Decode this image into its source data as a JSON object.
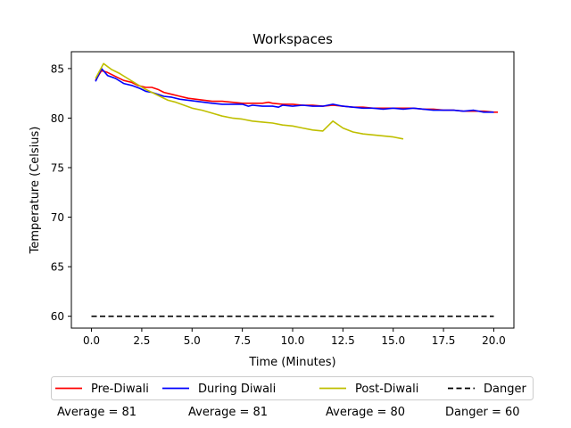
{
  "chart_data": {
    "type": "line",
    "title": "Workspaces",
    "xlabel": "Time (Minutes)",
    "ylabel": "Temperature (Celsius)",
    "xlim": [
      -1,
      21
    ],
    "ylim": [
      58.8,
      86.7
    ],
    "xticks": [
      0.0,
      2.5,
      5.0,
      7.5,
      10.0,
      12.5,
      15.0,
      17.5,
      20.0
    ],
    "xtick_labels": [
      "0.0",
      "2.5",
      "5.0",
      "7.5",
      "10.0",
      "12.5",
      "15.0",
      "17.5",
      "20.0"
    ],
    "yticks": [
      60,
      65,
      70,
      75,
      80,
      85
    ],
    "ytick_labels": [
      "60",
      "65",
      "70",
      "75",
      "80",
      "85"
    ],
    "grid": false,
    "legend_position": "bottom",
    "series": [
      {
        "name": "Pre-Diwali",
        "color": "#ff0000",
        "style": "solid",
        "x": [
          0.2,
          0.5,
          0.8,
          1.2,
          1.6,
          2.0,
          2.3,
          2.7,
          3.0,
          3.3,
          3.6,
          4.0,
          4.4,
          4.8,
          5.2,
          5.6,
          6.0,
          6.5,
          7.0,
          7.5,
          8.0,
          8.5,
          8.8,
          9.0,
          9.5,
          10.0,
          10.5,
          11.0,
          11.5,
          12.0,
          12.5,
          13.0,
          13.5,
          14.0,
          14.5,
          15.0,
          15.5,
          16.0,
          16.5,
          17.0,
          17.5,
          18.0,
          18.5,
          19.0,
          19.5,
          20.0,
          20.2
        ],
        "y": [
          83.8,
          84.8,
          84.6,
          84.2,
          83.8,
          83.6,
          83.3,
          83.1,
          83.1,
          82.9,
          82.6,
          82.4,
          82.2,
          82.0,
          81.9,
          81.8,
          81.7,
          81.7,
          81.6,
          81.5,
          81.5,
          81.5,
          81.6,
          81.5,
          81.4,
          81.4,
          81.3,
          81.3,
          81.2,
          81.3,
          81.2,
          81.1,
          81.1,
          81.0,
          81.0,
          81.0,
          81.0,
          81.0,
          80.9,
          80.9,
          80.8,
          80.8,
          80.7,
          80.7,
          80.7,
          80.6,
          80.6
        ]
      },
      {
        "name": "During Diwali",
        "color": "#0000ff",
        "style": "solid",
        "x": [
          0.2,
          0.5,
          0.8,
          1.2,
          1.6,
          2.0,
          2.4,
          2.7,
          3.0,
          3.3,
          3.6,
          4.0,
          4.4,
          4.8,
          5.2,
          5.6,
          6.0,
          6.5,
          7.0,
          7.5,
          7.8,
          8.0,
          8.5,
          9.0,
          9.3,
          9.5,
          10.0,
          10.5,
          11.0,
          11.5,
          12.0,
          12.5,
          13.0,
          13.5,
          14.0,
          14.5,
          15.0,
          15.5,
          16.0,
          16.5,
          17.0,
          17.5,
          18.0,
          18.5,
          19.0,
          19.5,
          20.0
        ],
        "y": [
          83.7,
          85.0,
          84.3,
          84.0,
          83.5,
          83.3,
          83.0,
          82.7,
          82.6,
          82.4,
          82.2,
          82.1,
          81.9,
          81.8,
          81.7,
          81.6,
          81.5,
          81.4,
          81.4,
          81.4,
          81.2,
          81.3,
          81.2,
          81.2,
          81.1,
          81.3,
          81.2,
          81.3,
          81.2,
          81.2,
          81.4,
          81.2,
          81.1,
          81.0,
          81.0,
          80.9,
          81.0,
          80.9,
          81.0,
          80.9,
          80.8,
          80.8,
          80.8,
          80.7,
          80.8,
          80.6,
          80.6
        ]
      },
      {
        "name": "Post-Diwali",
        "color": "#bfbf00",
        "style": "solid",
        "x": [
          0.2,
          0.6,
          1.0,
          1.4,
          1.8,
          2.2,
          2.6,
          3.0,
          3.4,
          3.8,
          4.2,
          4.6,
          5.0,
          5.5,
          6.0,
          6.5,
          7.0,
          7.5,
          8.0,
          8.5,
          9.0,
          9.5,
          10.0,
          10.5,
          11.0,
          11.5,
          12.0,
          12.5,
          13.0,
          13.5,
          14.0,
          14.5,
          15.0,
          15.5
        ],
        "y": [
          84.0,
          85.5,
          84.9,
          84.5,
          84.0,
          83.5,
          83.0,
          82.6,
          82.2,
          81.8,
          81.6,
          81.3,
          81.0,
          80.8,
          80.5,
          80.2,
          80.0,
          79.9,
          79.7,
          79.6,
          79.5,
          79.3,
          79.2,
          79.0,
          78.8,
          78.7,
          79.7,
          79.0,
          78.6,
          78.4,
          78.3,
          78.2,
          78.1,
          77.9
        ]
      },
      {
        "name": "Danger",
        "color": "#000000",
        "style": "dashed",
        "x": [
          0,
          20
        ],
        "y": [
          60,
          60
        ]
      }
    ],
    "averages": [
      "Average = 81",
      "Average = 81",
      "Average = 80",
      "Danger = 60"
    ]
  }
}
